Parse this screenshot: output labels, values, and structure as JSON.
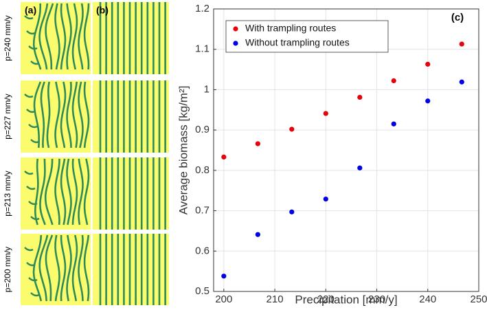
{
  "chart_data": {
    "type": "scatter",
    "xlabel": "Precipitation [mm/y]",
    "ylabel": "Average biomass [kg/m²]",
    "x": [
      200,
      206.67,
      213.33,
      220,
      226.67,
      233.33,
      240,
      246.67
    ],
    "series": [
      {
        "name": "With trampling routes",
        "color": "#e8000b",
        "values": [
          0.833,
          0.866,
          0.902,
          0.941,
          0.981,
          1.022,
          1.063,
          1.113
        ]
      },
      {
        "name": "Without trampling routes",
        "color": "#0000e8",
        "values": [
          0.538,
          0.641,
          0.697,
          0.729,
          0.806,
          0.915,
          0.972,
          1.019
        ]
      }
    ],
    "xlim": [
      198,
      250
    ],
    "xticks": [
      200,
      210,
      220,
      230,
      240,
      250
    ],
    "ylim": [
      0.5,
      1.2
    ],
    "yticks": [
      0.5,
      0.6,
      0.7,
      0.8,
      0.9,
      1,
      1.1,
      1.2
    ],
    "grid": true,
    "legend": "top-left"
  },
  "panels": {
    "a": "(a)",
    "b": "(b)",
    "c": "(c)",
    "rows": [
      "p=240 mm/y",
      "p=227 mm/y",
      "p=213 mm/y",
      "p=200 mm/y"
    ]
  }
}
